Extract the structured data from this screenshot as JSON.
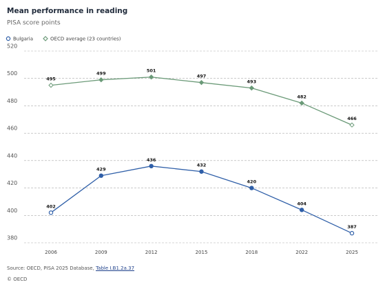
{
  "chart_data": {
    "type": "line",
    "title": "Mean performance in reading",
    "subtitle": "PISA score points",
    "categories": [
      "2006",
      "2009",
      "2012",
      "2015",
      "2018",
      "2022",
      "2025"
    ],
    "series": [
      {
        "name": "Bulgaria",
        "color": "#2f5fa8",
        "marker": "circle",
        "values": [
          402,
          429,
          436,
          432,
          420,
          404,
          387
        ]
      },
      {
        "name": "OECD average (23 countries)",
        "color": "#6b9a78",
        "marker": "diamond",
        "values": [
          495,
          499,
          501,
          497,
          493,
          482,
          466
        ]
      }
    ],
    "open_endpoints": true,
    "ylim": [
      380,
      520
    ],
    "yticks": [
      380,
      400,
      420,
      440,
      460,
      480,
      500,
      520
    ],
    "grid": true,
    "legend": "top-left"
  },
  "source": {
    "text": "Source: OECD, PISA 2025 Database, ",
    "link": "Table I.B1.2a.37"
  },
  "copyright": "© OECD"
}
